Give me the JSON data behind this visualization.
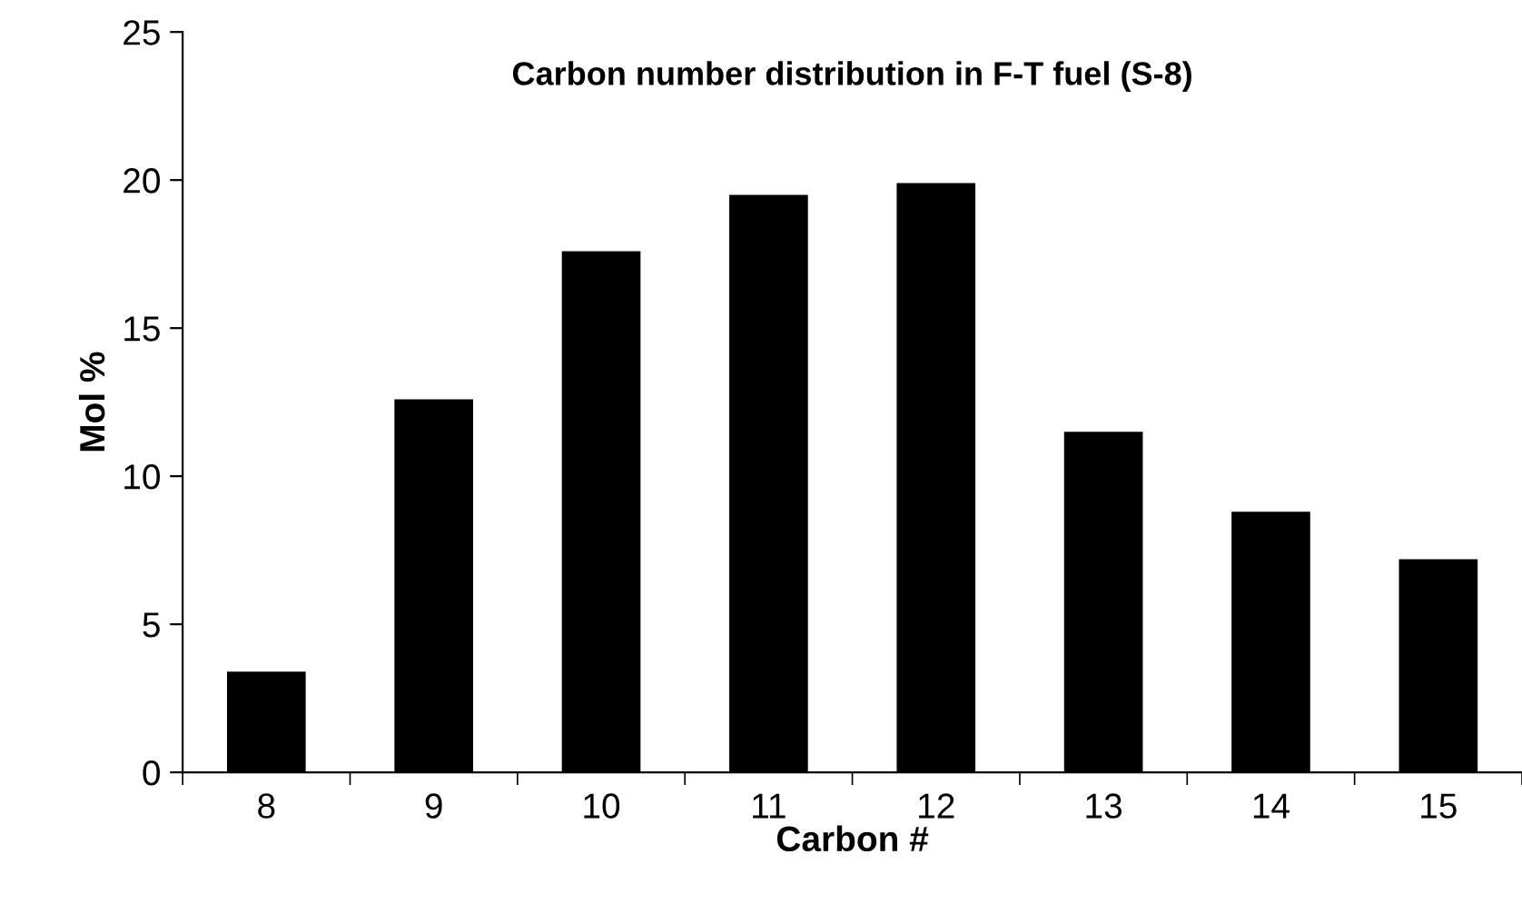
{
  "chart_data": {
    "type": "bar",
    "title": "Carbon number distribution in F-T fuel (S-8)",
    "xlabel": "Carbon #",
    "ylabel": "Mol %",
    "categories": [
      "8",
      "9",
      "10",
      "11",
      "12",
      "13",
      "14",
      "15"
    ],
    "values": [
      3.4,
      12.6,
      17.6,
      19.5,
      19.9,
      11.5,
      8.8,
      7.2
    ],
    "color": "#000000",
    "ylim": [
      0,
      25
    ],
    "yticks": [
      0,
      5,
      10,
      15,
      20,
      25
    ],
    "grid": false
  }
}
